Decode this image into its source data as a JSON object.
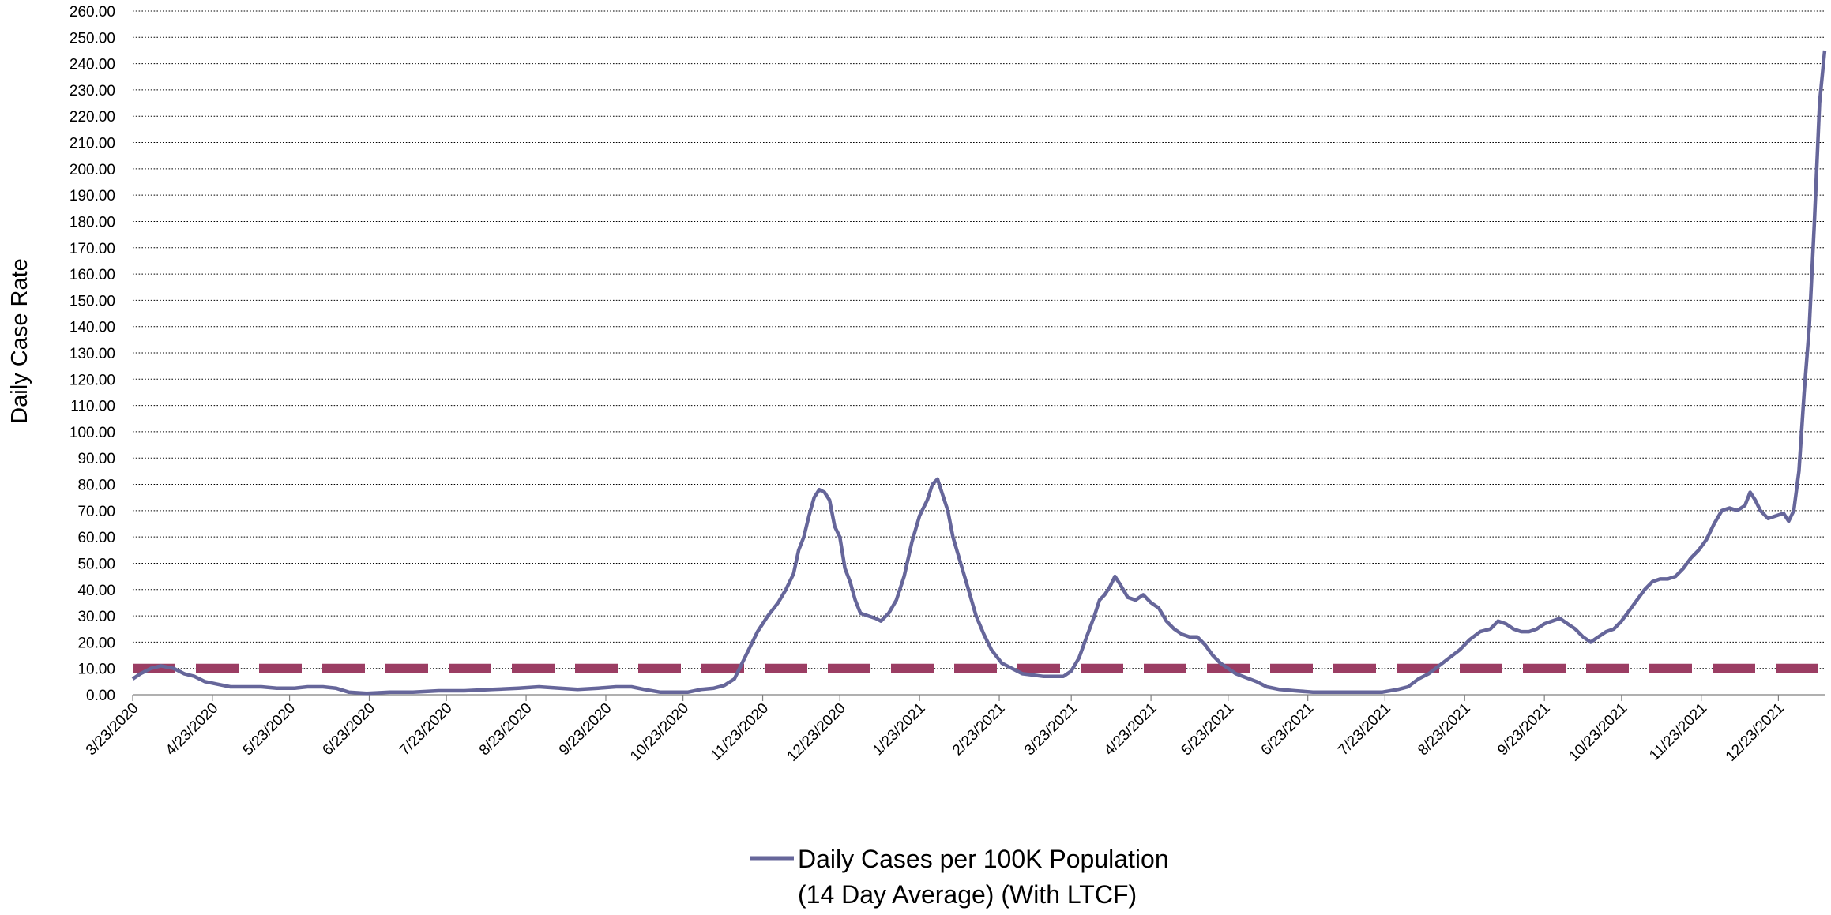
{
  "chart_data": {
    "type": "line",
    "title": "",
    "xlabel": "",
    "ylabel": "Daily Case Rate",
    "ylim": [
      0,
      260
    ],
    "yticks": [
      "0.00",
      "10.00",
      "20.00",
      "30.00",
      "40.00",
      "50.00",
      "60.00",
      "70.00",
      "80.00",
      "90.00",
      "100.00",
      "110.00",
      "120.00",
      "130.00",
      "140.00",
      "150.00",
      "160.00",
      "170.00",
      "180.00",
      "190.00",
      "200.00",
      "210.00",
      "220.00",
      "230.00",
      "240.00",
      "250.00",
      "260.00"
    ],
    "xlim": [
      "2020-03-23",
      "2022-01-10"
    ],
    "xticks": [
      {
        "date": "2020-03-23",
        "label": "3/23/2020"
      },
      {
        "date": "2020-04-23",
        "label": "4/23/2020"
      },
      {
        "date": "2020-05-23",
        "label": "5/23/2020"
      },
      {
        "date": "2020-06-23",
        "label": "6/23/2020"
      },
      {
        "date": "2020-07-23",
        "label": "7/23/2020"
      },
      {
        "date": "2020-08-23",
        "label": "8/23/2020"
      },
      {
        "date": "2020-09-23",
        "label": "9/23/2020"
      },
      {
        "date": "2020-10-23",
        "label": "10/23/2020"
      },
      {
        "date": "2020-11-23",
        "label": "11/23/2020"
      },
      {
        "date": "2020-12-23",
        "label": "12/23/2020"
      },
      {
        "date": "2021-01-23",
        "label": "1/23/2021"
      },
      {
        "date": "2021-02-23",
        "label": "2/23/2021"
      },
      {
        "date": "2021-03-23",
        "label": "3/23/2021"
      },
      {
        "date": "2021-04-23",
        "label": "4/23/2021"
      },
      {
        "date": "2021-05-23",
        "label": "5/23/2021"
      },
      {
        "date": "2021-06-23",
        "label": "6/23/2021"
      },
      {
        "date": "2021-07-23",
        "label": "7/23/2021"
      },
      {
        "date": "2021-08-23",
        "label": "8/23/2021"
      },
      {
        "date": "2021-09-23",
        "label": "9/23/2021"
      },
      {
        "date": "2021-10-23",
        "label": "10/23/2021"
      },
      {
        "date": "2021-11-23",
        "label": "11/23/2021"
      },
      {
        "date": "2021-12-23",
        "label": "12/23/2021"
      }
    ],
    "grid": true,
    "legend_position": "bottom",
    "series": [
      {
        "name": "Daily Cases per 100K Population (14 Day Average) (With LTCF)",
        "color": "#66669A",
        "style": "solid",
        "points": [
          [
            "2020-03-23",
            6
          ],
          [
            "2020-03-26",
            8
          ],
          [
            "2020-03-30",
            10
          ],
          [
            "2020-04-03",
            11
          ],
          [
            "2020-04-08",
            10
          ],
          [
            "2020-04-12",
            8
          ],
          [
            "2020-04-16",
            7
          ],
          [
            "2020-04-20",
            5
          ],
          [
            "2020-04-25",
            4
          ],
          [
            "2020-04-30",
            3
          ],
          [
            "2020-05-06",
            3
          ],
          [
            "2020-05-12",
            3
          ],
          [
            "2020-05-18",
            2.5
          ],
          [
            "2020-05-25",
            2.5
          ],
          [
            "2020-05-30",
            3
          ],
          [
            "2020-06-05",
            3
          ],
          [
            "2020-06-10",
            2.5
          ],
          [
            "2020-06-15",
            1
          ],
          [
            "2020-06-22",
            0.5
          ],
          [
            "2020-07-01",
            1
          ],
          [
            "2020-07-10",
            1
          ],
          [
            "2020-07-20",
            1.5
          ],
          [
            "2020-07-30",
            1.5
          ],
          [
            "2020-08-10",
            2
          ],
          [
            "2020-08-20",
            2.5
          ],
          [
            "2020-08-28",
            3
          ],
          [
            "2020-09-05",
            2.5
          ],
          [
            "2020-09-12",
            2
          ],
          [
            "2020-09-20",
            2.5
          ],
          [
            "2020-09-27",
            3
          ],
          [
            "2020-10-03",
            3
          ],
          [
            "2020-10-08",
            2
          ],
          [
            "2020-10-14",
            1
          ],
          [
            "2020-10-20",
            1
          ],
          [
            "2020-10-25",
            1
          ],
          [
            "2020-10-30",
            2
          ],
          [
            "2020-11-04",
            2.5
          ],
          [
            "2020-11-08",
            3.5
          ],
          [
            "2020-11-12",
            6
          ],
          [
            "2020-11-15",
            12
          ],
          [
            "2020-11-18",
            18
          ],
          [
            "2020-11-21",
            24
          ],
          [
            "2020-11-25",
            30
          ],
          [
            "2020-11-29",
            35
          ],
          [
            "2020-12-02",
            40
          ],
          [
            "2020-12-05",
            46
          ],
          [
            "2020-12-07",
            55
          ],
          [
            "2020-12-09",
            60
          ],
          [
            "2020-12-11",
            68
          ],
          [
            "2020-12-13",
            75
          ],
          [
            "2020-12-15",
            78
          ],
          [
            "2020-12-17",
            77
          ],
          [
            "2020-12-19",
            74
          ],
          [
            "2020-12-21",
            64
          ],
          [
            "2020-12-23",
            60
          ],
          [
            "2020-12-25",
            48
          ],
          [
            "2020-12-27",
            43
          ],
          [
            "2020-12-29",
            36
          ],
          [
            "2020-12-31",
            31
          ],
          [
            "2021-01-03",
            30
          ],
          [
            "2021-01-06",
            29
          ],
          [
            "2021-01-08",
            28
          ],
          [
            "2021-01-11",
            31
          ],
          [
            "2021-01-14",
            36
          ],
          [
            "2021-01-17",
            45
          ],
          [
            "2021-01-20",
            58
          ],
          [
            "2021-01-23",
            68
          ],
          [
            "2021-01-26",
            74
          ],
          [
            "2021-01-28",
            80
          ],
          [
            "2021-01-30",
            82
          ],
          [
            "2021-02-01",
            76
          ],
          [
            "2021-02-03",
            70
          ],
          [
            "2021-02-05",
            60
          ],
          [
            "2021-02-08",
            50
          ],
          [
            "2021-02-11",
            40
          ],
          [
            "2021-02-14",
            30
          ],
          [
            "2021-02-17",
            23
          ],
          [
            "2021-02-20",
            17
          ],
          [
            "2021-02-24",
            12
          ],
          [
            "2021-02-28",
            10
          ],
          [
            "2021-03-04",
            8
          ],
          [
            "2021-03-08",
            7.5
          ],
          [
            "2021-03-12",
            7
          ],
          [
            "2021-03-16",
            7
          ],
          [
            "2021-03-20",
            7
          ],
          [
            "2021-03-23",
            9
          ],
          [
            "2021-03-26",
            14
          ],
          [
            "2021-03-29",
            22
          ],
          [
            "2021-04-01",
            30
          ],
          [
            "2021-04-03",
            36
          ],
          [
            "2021-04-05",
            38
          ],
          [
            "2021-04-07",
            41
          ],
          [
            "2021-04-09",
            45
          ],
          [
            "2021-04-11",
            42
          ],
          [
            "2021-04-14",
            37
          ],
          [
            "2021-04-17",
            36
          ],
          [
            "2021-04-20",
            38
          ],
          [
            "2021-04-23",
            35
          ],
          [
            "2021-04-26",
            33
          ],
          [
            "2021-04-29",
            28
          ],
          [
            "2021-05-02",
            25
          ],
          [
            "2021-05-05",
            23
          ],
          [
            "2021-05-08",
            22
          ],
          [
            "2021-05-11",
            22
          ],
          [
            "2021-05-14",
            19
          ],
          [
            "2021-05-17",
            15
          ],
          [
            "2021-05-20",
            12
          ],
          [
            "2021-05-23",
            10
          ],
          [
            "2021-05-26",
            8
          ],
          [
            "2021-05-30",
            6.5
          ],
          [
            "2021-06-03",
            5
          ],
          [
            "2021-06-07",
            3
          ],
          [
            "2021-06-12",
            2
          ],
          [
            "2021-06-18",
            1.5
          ],
          [
            "2021-06-25",
            1
          ],
          [
            "2021-07-05",
            1
          ],
          [
            "2021-07-15",
            1
          ],
          [
            "2021-07-22",
            1
          ],
          [
            "2021-07-28",
            2
          ],
          [
            "2021-08-01",
            3
          ],
          [
            "2021-08-05",
            6
          ],
          [
            "2021-08-09",
            8
          ],
          [
            "2021-08-13",
            11
          ],
          [
            "2021-08-17",
            14
          ],
          [
            "2021-08-21",
            17
          ],
          [
            "2021-08-25",
            21
          ],
          [
            "2021-08-29",
            24
          ],
          [
            "2021-09-02",
            25
          ],
          [
            "2021-09-05",
            28
          ],
          [
            "2021-09-08",
            27
          ],
          [
            "2021-09-11",
            25
          ],
          [
            "2021-09-14",
            24
          ],
          [
            "2021-09-17",
            24
          ],
          [
            "2021-09-20",
            25
          ],
          [
            "2021-09-23",
            27
          ],
          [
            "2021-09-26",
            28
          ],
          [
            "2021-09-29",
            29
          ],
          [
            "2021-10-02",
            27
          ],
          [
            "2021-10-05",
            25
          ],
          [
            "2021-10-08",
            22
          ],
          [
            "2021-10-11",
            20
          ],
          [
            "2021-10-14",
            22
          ],
          [
            "2021-10-17",
            24
          ],
          [
            "2021-10-20",
            25
          ],
          [
            "2021-10-23",
            28
          ],
          [
            "2021-10-26",
            32
          ],
          [
            "2021-10-29",
            36
          ],
          [
            "2021-11-01",
            40
          ],
          [
            "2021-11-04",
            43
          ],
          [
            "2021-11-07",
            44
          ],
          [
            "2021-11-10",
            44
          ],
          [
            "2021-11-13",
            45
          ],
          [
            "2021-11-16",
            48
          ],
          [
            "2021-11-19",
            52
          ],
          [
            "2021-11-22",
            55
          ],
          [
            "2021-11-25",
            59
          ],
          [
            "2021-11-28",
            65
          ],
          [
            "2021-12-01",
            70
          ],
          [
            "2021-12-04",
            71
          ],
          [
            "2021-12-07",
            70
          ],
          [
            "2021-12-10",
            72
          ],
          [
            "2021-12-12",
            77
          ],
          [
            "2021-12-14",
            74
          ],
          [
            "2021-12-16",
            70
          ],
          [
            "2021-12-19",
            67
          ],
          [
            "2021-12-22",
            68
          ],
          [
            "2021-12-25",
            69
          ],
          [
            "2021-12-27",
            66
          ],
          [
            "2021-12-29",
            70
          ],
          [
            "2021-12-31",
            85
          ],
          [
            "2022-01-02",
            115
          ],
          [
            "2022-01-04",
            140
          ],
          [
            "2022-01-06",
            180
          ],
          [
            "2022-01-08",
            225
          ],
          [
            "2022-01-10",
            245
          ]
        ]
      },
      {
        "name": "",
        "color": "#9B3D63",
        "style": "dashed",
        "points": [
          [
            "2020-03-23",
            10
          ],
          [
            "2022-01-10",
            10
          ]
        ]
      }
    ]
  }
}
